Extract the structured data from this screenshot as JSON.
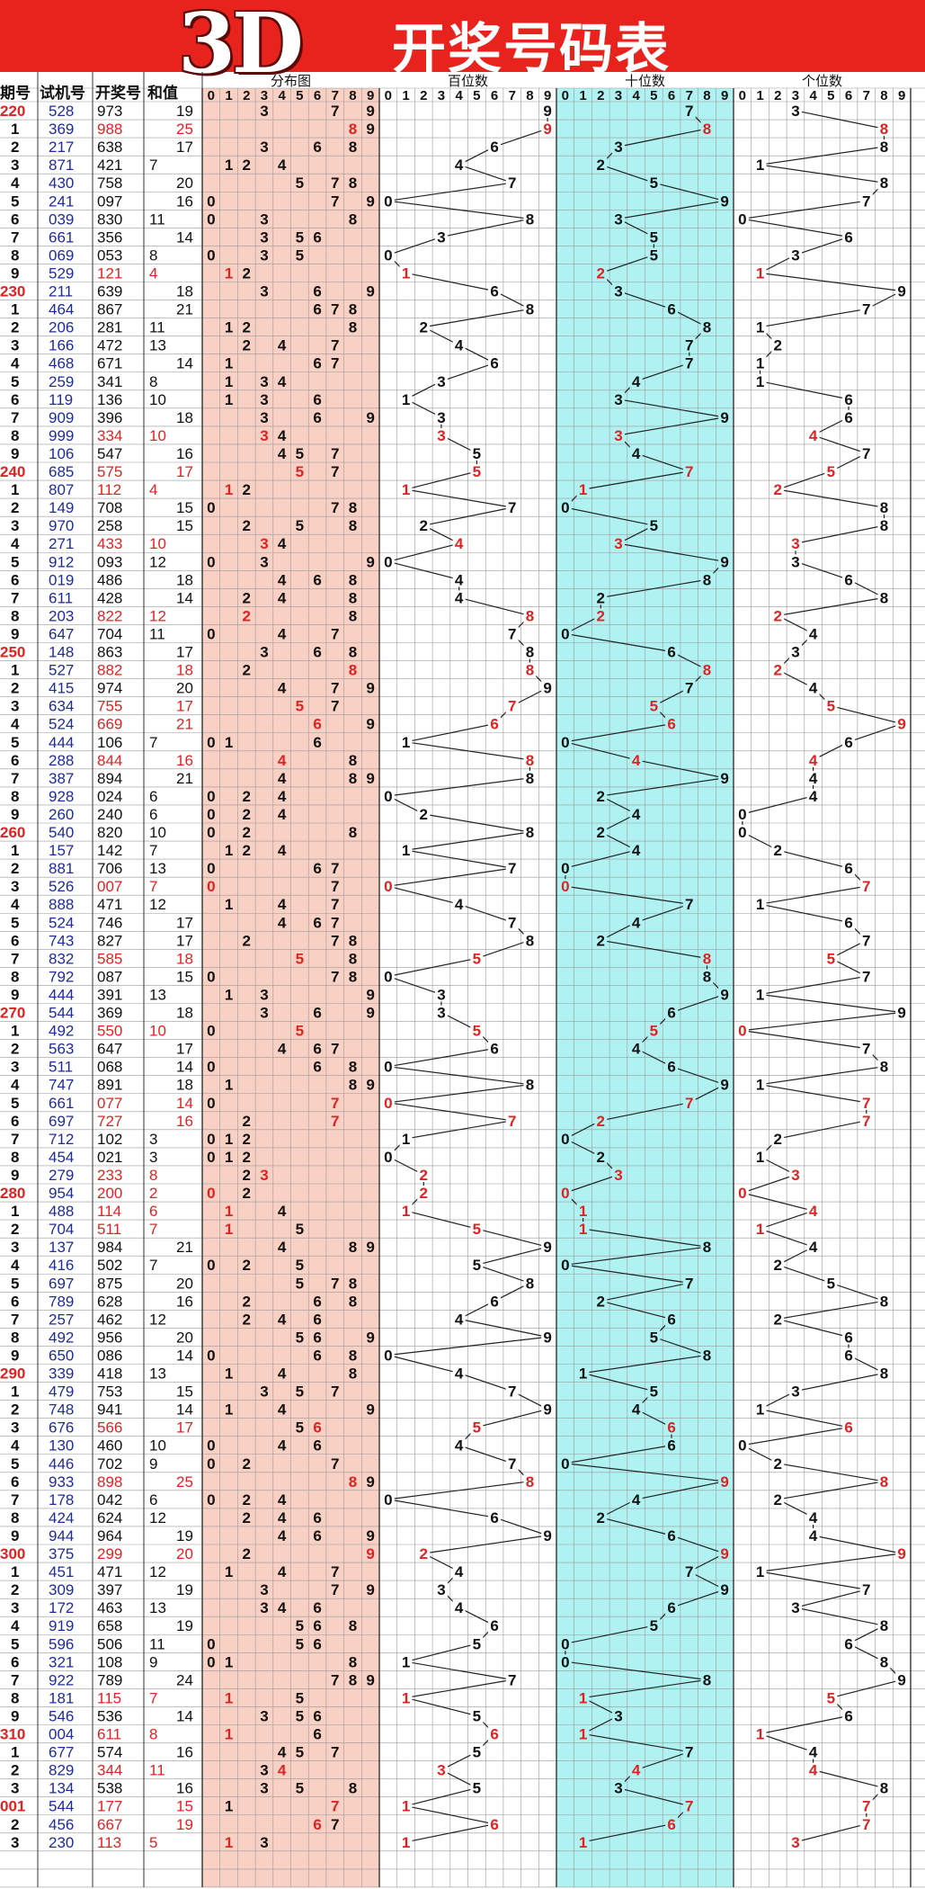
{
  "title": {
    "brand": "3D",
    "text": "开奖号码表"
  },
  "headers": {
    "period": "期号",
    "trial": "试机号",
    "draw": "开奖号",
    "sum": "和值",
    "dist": "分布图",
    "hundreds": "百位数",
    "tens": "十位数",
    "units": "个位数"
  },
  "digit_labels": [
    "0",
    "1",
    "2",
    "3",
    "4",
    "5",
    "6",
    "7",
    "8",
    "9"
  ],
  "colors": {
    "banner": "#e8221d",
    "pink_zone": "#f8d0c4",
    "cyan_zone": "#b0f2f2",
    "number_blue": "#1f2b9a",
    "highlight_red": "#e02222"
  },
  "rows": [
    {
      "p": "220",
      "t": "528",
      "d": "973",
      "s": "19"
    },
    {
      "p": "1",
      "t": "369",
      "d": "988",
      "s": "25"
    },
    {
      "p": "2",
      "t": "217",
      "d": "638",
      "s": "17"
    },
    {
      "p": "3",
      "t": "871",
      "d": "421",
      "s": "7"
    },
    {
      "p": "4",
      "t": "430",
      "d": "758",
      "s": "20"
    },
    {
      "p": "5",
      "t": "241",
      "d": "097",
      "s": "16"
    },
    {
      "p": "6",
      "t": "039",
      "d": "830",
      "s": "11"
    },
    {
      "p": "7",
      "t": "661",
      "d": "356",
      "s": "14"
    },
    {
      "p": "8",
      "t": "069",
      "d": "053",
      "s": "8"
    },
    {
      "p": "9",
      "t": "529",
      "d": "121",
      "s": "4"
    },
    {
      "p": "230",
      "t": "211",
      "d": "639",
      "s": "18"
    },
    {
      "p": "1",
      "t": "464",
      "d": "867",
      "s": "21"
    },
    {
      "p": "2",
      "t": "206",
      "d": "281",
      "s": "11"
    },
    {
      "p": "3",
      "t": "166",
      "d": "472",
      "s": "13"
    },
    {
      "p": "4",
      "t": "468",
      "d": "671",
      "s": "14"
    },
    {
      "p": "5",
      "t": "259",
      "d": "341",
      "s": "8"
    },
    {
      "p": "6",
      "t": "119",
      "d": "136",
      "s": "10"
    },
    {
      "p": "7",
      "t": "909",
      "d": "396",
      "s": "18"
    },
    {
      "p": "8",
      "t": "999",
      "d": "334",
      "s": "10"
    },
    {
      "p": "9",
      "t": "106",
      "d": "547",
      "s": "16"
    },
    {
      "p": "240",
      "t": "685",
      "d": "575",
      "s": "17"
    },
    {
      "p": "1",
      "t": "807",
      "d": "112",
      "s": "4"
    },
    {
      "p": "2",
      "t": "149",
      "d": "708",
      "s": "15"
    },
    {
      "p": "3",
      "t": "970",
      "d": "258",
      "s": "15"
    },
    {
      "p": "4",
      "t": "271",
      "d": "433",
      "s": "10"
    },
    {
      "p": "5",
      "t": "912",
      "d": "093",
      "s": "12"
    },
    {
      "p": "6",
      "t": "019",
      "d": "486",
      "s": "18"
    },
    {
      "p": "7",
      "t": "611",
      "d": "428",
      "s": "14"
    },
    {
      "p": "8",
      "t": "203",
      "d": "822",
      "s": "12"
    },
    {
      "p": "9",
      "t": "647",
      "d": "704",
      "s": "11"
    },
    {
      "p": "250",
      "t": "148",
      "d": "863",
      "s": "17"
    },
    {
      "p": "1",
      "t": "527",
      "d": "882",
      "s": "18"
    },
    {
      "p": "2",
      "t": "415",
      "d": "974",
      "s": "20"
    },
    {
      "p": "3",
      "t": "634",
      "d": "755",
      "s": "17"
    },
    {
      "p": "4",
      "t": "524",
      "d": "669",
      "s": "21"
    },
    {
      "p": "5",
      "t": "444",
      "d": "106",
      "s": "7"
    },
    {
      "p": "6",
      "t": "288",
      "d": "844",
      "s": "16"
    },
    {
      "p": "7",
      "t": "387",
      "d": "894",
      "s": "21"
    },
    {
      "p": "8",
      "t": "928",
      "d": "024",
      "s": "6"
    },
    {
      "p": "9",
      "t": "260",
      "d": "240",
      "s": "6"
    },
    {
      "p": "260",
      "t": "540",
      "d": "820",
      "s": "10"
    },
    {
      "p": "1",
      "t": "157",
      "d": "142",
      "s": "7"
    },
    {
      "p": "2",
      "t": "881",
      "d": "706",
      "s": "13"
    },
    {
      "p": "3",
      "t": "526",
      "d": "007",
      "s": "7"
    },
    {
      "p": "4",
      "t": "888",
      "d": "471",
      "s": "12"
    },
    {
      "p": "5",
      "t": "524",
      "d": "746",
      "s": "17"
    },
    {
      "p": "6",
      "t": "743",
      "d": "827",
      "s": "17"
    },
    {
      "p": "7",
      "t": "832",
      "d": "585",
      "s": "18"
    },
    {
      "p": "8",
      "t": "792",
      "d": "087",
      "s": "15"
    },
    {
      "p": "9",
      "t": "444",
      "d": "391",
      "s": "13"
    },
    {
      "p": "270",
      "t": "544",
      "d": "369",
      "s": "18"
    },
    {
      "p": "1",
      "t": "492",
      "d": "550",
      "s": "10"
    },
    {
      "p": "2",
      "t": "563",
      "d": "647",
      "s": "17"
    },
    {
      "p": "3",
      "t": "511",
      "d": "068",
      "s": "14"
    },
    {
      "p": "4",
      "t": "747",
      "d": "891",
      "s": "18"
    },
    {
      "p": "5",
      "t": "661",
      "d": "077",
      "s": "14"
    },
    {
      "p": "6",
      "t": "697",
      "d": "727",
      "s": "16"
    },
    {
      "p": "7",
      "t": "712",
      "d": "102",
      "s": "3"
    },
    {
      "p": "8",
      "t": "454",
      "d": "021",
      "s": "3"
    },
    {
      "p": "9",
      "t": "279",
      "d": "233",
      "s": "8"
    },
    {
      "p": "280",
      "t": "954",
      "d": "200",
      "s": "2"
    },
    {
      "p": "1",
      "t": "488",
      "d": "114",
      "s": "6"
    },
    {
      "p": "2",
      "t": "704",
      "d": "511",
      "s": "7"
    },
    {
      "p": "3",
      "t": "137",
      "d": "984",
      "s": "21"
    },
    {
      "p": "4",
      "t": "416",
      "d": "502",
      "s": "7"
    },
    {
      "p": "5",
      "t": "697",
      "d": "875",
      "s": "20"
    },
    {
      "p": "6",
      "t": "789",
      "d": "628",
      "s": "16"
    },
    {
      "p": "7",
      "t": "257",
      "d": "462",
      "s": "12"
    },
    {
      "p": "8",
      "t": "492",
      "d": "956",
      "s": "20"
    },
    {
      "p": "9",
      "t": "650",
      "d": "086",
      "s": "14"
    },
    {
      "p": "290",
      "t": "339",
      "d": "418",
      "s": "13"
    },
    {
      "p": "1",
      "t": "479",
      "d": "753",
      "s": "15"
    },
    {
      "p": "2",
      "t": "748",
      "d": "941",
      "s": "14"
    },
    {
      "p": "3",
      "t": "676",
      "d": "566",
      "s": "17"
    },
    {
      "p": "4",
      "t": "130",
      "d": "460",
      "s": "10"
    },
    {
      "p": "5",
      "t": "446",
      "d": "702",
      "s": "9"
    },
    {
      "p": "6",
      "t": "933",
      "d": "898",
      "s": "25"
    },
    {
      "p": "7",
      "t": "178",
      "d": "042",
      "s": "6"
    },
    {
      "p": "8",
      "t": "424",
      "d": "624",
      "s": "12"
    },
    {
      "p": "9",
      "t": "944",
      "d": "964",
      "s": "19"
    },
    {
      "p": "300",
      "t": "375",
      "d": "299",
      "s": "20"
    },
    {
      "p": "1",
      "t": "451",
      "d": "471",
      "s": "12"
    },
    {
      "p": "2",
      "t": "309",
      "d": "397",
      "s": "19"
    },
    {
      "p": "3",
      "t": "172",
      "d": "463",
      "s": "13"
    },
    {
      "p": "4",
      "t": "919",
      "d": "658",
      "s": "19"
    },
    {
      "p": "5",
      "t": "596",
      "d": "506",
      "s": "11"
    },
    {
      "p": "6",
      "t": "321",
      "d": "108",
      "s": "9"
    },
    {
      "p": "7",
      "t": "922",
      "d": "789",
      "s": "24"
    },
    {
      "p": "8",
      "t": "181",
      "d": "115",
      "s": "7"
    },
    {
      "p": "9",
      "t": "546",
      "d": "536",
      "s": "14"
    },
    {
      "p": "310",
      "t": "004",
      "d": "611",
      "s": "8"
    },
    {
      "p": "1",
      "t": "677",
      "d": "574",
      "s": "16"
    },
    {
      "p": "2",
      "t": "829",
      "d": "344",
      "s": "11"
    },
    {
      "p": "3",
      "t": "134",
      "d": "538",
      "s": "16"
    },
    {
      "p": "001",
      "t": "544",
      "d": "177",
      "s": "15"
    },
    {
      "p": "2",
      "t": "456",
      "d": "667",
      "s": "19"
    },
    {
      "p": "3",
      "t": "230",
      "d": "113",
      "s": "5"
    }
  ]
}
